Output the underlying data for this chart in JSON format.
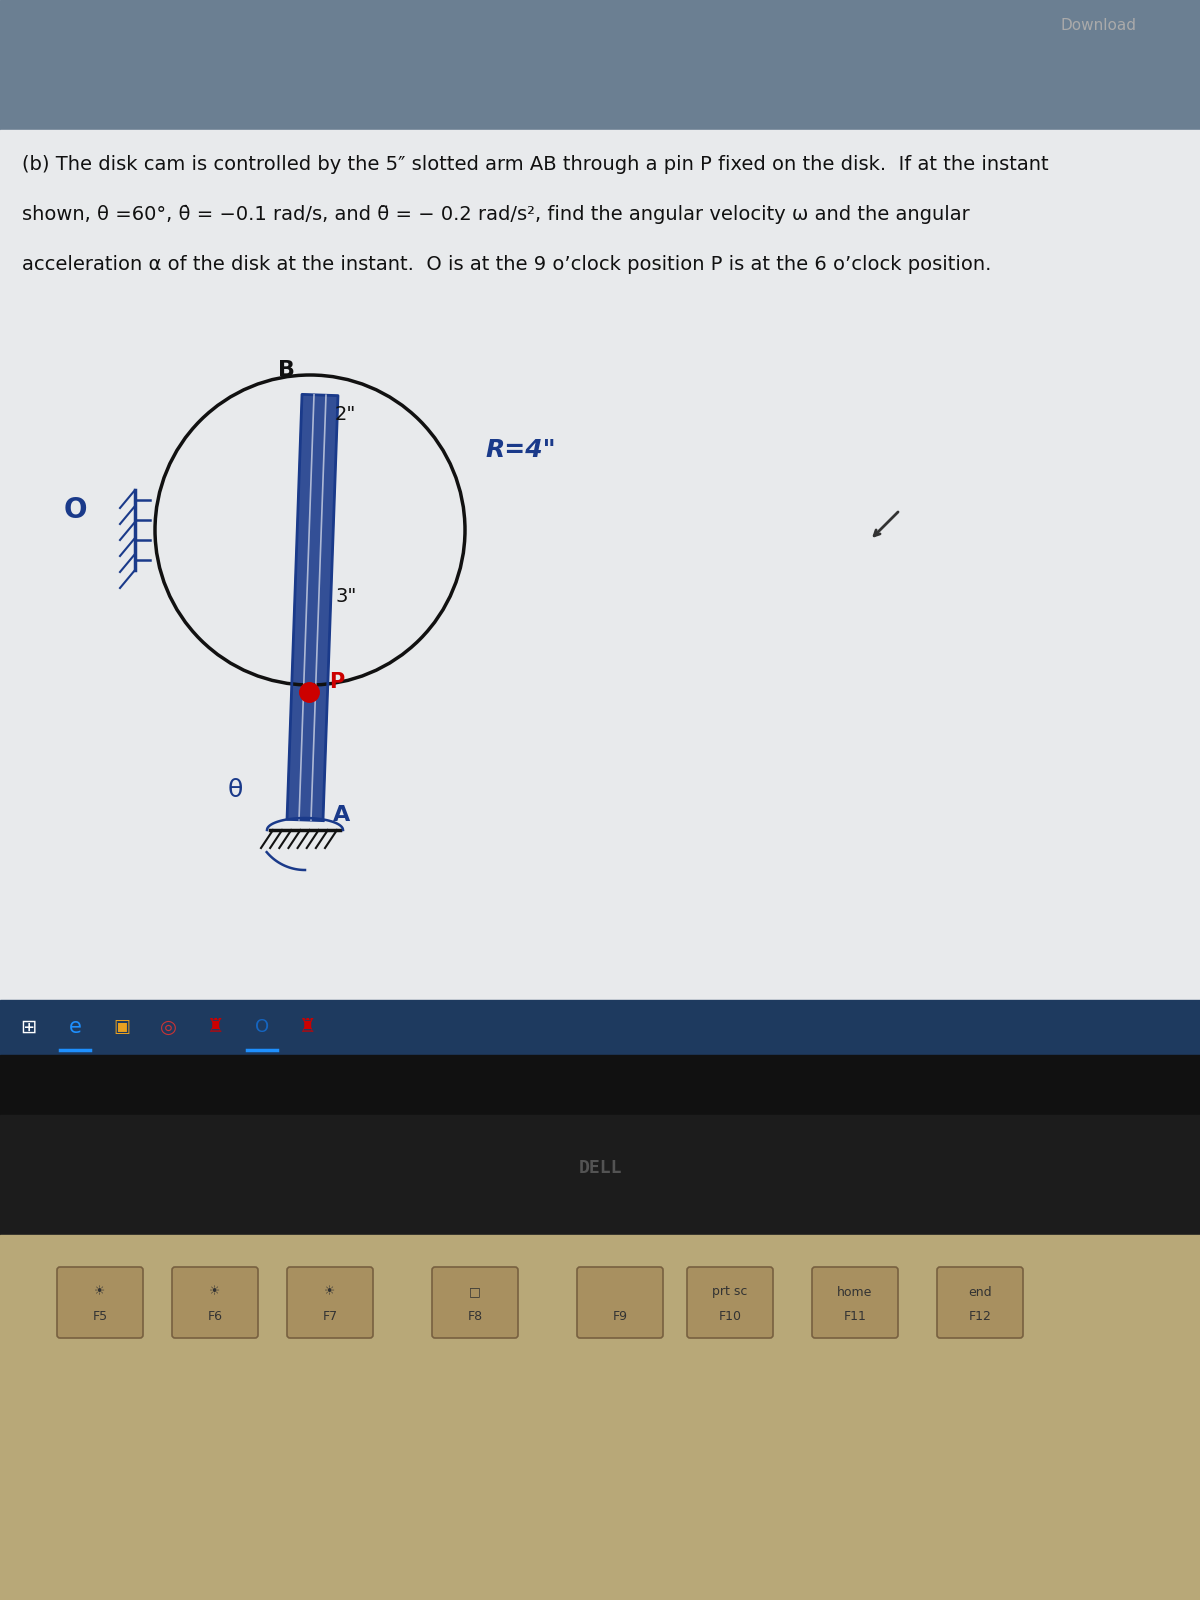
{
  "bg_header_color": "#6b7f92",
  "bg_screen_color": "#c8cdd2",
  "bg_paper_color": "#dde0e3",
  "text_color": "#111111",
  "blue_color": "#1a3a8a",
  "red_color": "#cc0000",
  "title_line1": "(b) The disk cam is controlled by the 5″ slotted arm AB through a pin P fixed on the disk.  If at the instant",
  "title_line2": "shown, θ =60°, θ̇ = −0.1 rad/s, and θ̈ = − 0.2 rad/s², find the angular velocity ω and the angular",
  "title_line3": "acceleration α of the disk at the instant.  O is at the 9 o’clock position P is at the 6 o’clock position.",
  "taskbar_color": "#1e3a5f",
  "bezel_color": "#111111",
  "dell_area_color": "#1a1a1a",
  "keyboard_color": "#b8a878",
  "key_color": "#a89060",
  "key_edge_color": "#786040",
  "download_text": "Download",
  "R_label": "R=4\"",
  "origin_label": "O",
  "theta_label": "θ",
  "pin_label": "P",
  "B_label": "B",
  "A_label": "A"
}
